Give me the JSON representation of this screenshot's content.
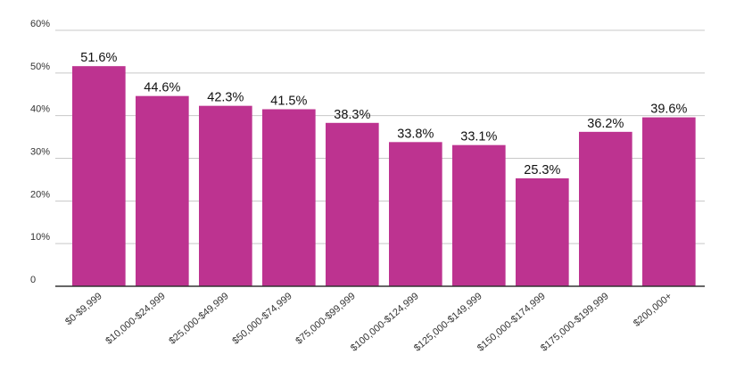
{
  "chart_data": {
    "type": "bar",
    "title": "",
    "xlabel": "",
    "ylabel": "",
    "ylim": [
      0,
      60
    ],
    "y_ticks": [
      "0",
      "10%",
      "20%",
      "30%",
      "40%",
      "50%",
      "60%"
    ],
    "y_tick_values": [
      0,
      10,
      20,
      30,
      40,
      50,
      60
    ],
    "grid": true,
    "legend": "none",
    "bar_color": "#bd3390",
    "categories": [
      "$0-$9,999",
      "$10,000-$24,999",
      "$25,000-$49,999",
      "$50,000-$74,999",
      "$75,000-$99,999",
      "$100,000-$124,999",
      "$125,000-$149,999",
      "$150,000-$174,999",
      "$175,000-$199,999",
      "$200,000+"
    ],
    "values": [
      51.6,
      44.6,
      42.3,
      41.5,
      38.3,
      33.8,
      33.1,
      25.3,
      36.2,
      39.6
    ],
    "data_labels": [
      "51.6%",
      "44.6%",
      "42.3%",
      "41.5%",
      "38.3%",
      "33.8%",
      "33.1%",
      "25.3%",
      "36.2%",
      "39.6%"
    ]
  }
}
